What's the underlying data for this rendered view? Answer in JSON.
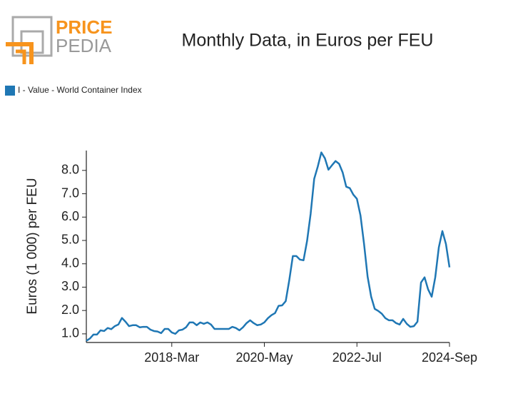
{
  "logo": {
    "brand_first": "PRICE",
    "brand_second": "PEDIA"
  },
  "chart_data": {
    "type": "line",
    "title": "Monthly Data, in Euros per FEU",
    "y_label": "Euros (1 000) per FEU",
    "x": [
      "2016-Mar",
      "2016-Apr",
      "2016-May",
      "2016-Jun",
      "2016-Jul",
      "2016-Aug",
      "2016-Sep",
      "2016-Oct",
      "2016-Nov",
      "2016-Dec",
      "2017-Jan",
      "2017-Feb",
      "2017-Mar",
      "2017-Apr",
      "2017-May",
      "2017-Jun",
      "2017-Jul",
      "2017-Aug",
      "2017-Sep",
      "2017-Oct",
      "2017-Nov",
      "2017-Dec",
      "2018-Jan",
      "2018-Feb",
      "2018-Mar",
      "2018-Apr",
      "2018-May",
      "2018-Jun",
      "2018-Jul",
      "2018-Aug",
      "2018-Sep",
      "2018-Oct",
      "2018-Nov",
      "2018-Dec",
      "2019-Jan",
      "2019-Feb",
      "2019-Mar",
      "2019-Apr",
      "2019-May",
      "2019-Jun",
      "2019-Jul",
      "2019-Aug",
      "2019-Sep",
      "2019-Oct",
      "2019-Nov",
      "2019-Dec",
      "2020-Jan",
      "2020-Feb",
      "2020-Mar",
      "2020-Apr",
      "2020-May",
      "2020-Jun",
      "2020-Jul",
      "2020-Aug",
      "2020-Sep",
      "2020-Oct",
      "2020-Nov",
      "2020-Dec",
      "2021-Jan",
      "2021-Feb",
      "2021-Mar",
      "2021-Apr",
      "2021-May",
      "2021-Jun",
      "2021-Jul",
      "2021-Aug",
      "2021-Sep",
      "2021-Oct",
      "2021-Nov",
      "2021-Dec",
      "2022-Jan",
      "2022-Feb",
      "2022-Mar",
      "2022-Apr",
      "2022-May",
      "2022-Jun",
      "2022-Jul",
      "2022-Aug",
      "2022-Sep",
      "2022-Oct",
      "2022-Nov",
      "2022-Dec",
      "2023-Jan",
      "2023-Feb",
      "2023-Mar",
      "2023-Apr",
      "2023-May",
      "2023-Jun",
      "2023-Jul",
      "2023-Aug",
      "2023-Sep",
      "2023-Oct",
      "2023-Nov",
      "2023-Dec",
      "2024-Jan",
      "2024-Feb",
      "2024-Mar",
      "2024-Apr",
      "2024-May",
      "2024-Jun",
      "2024-Jul",
      "2024-Aug",
      "2024-Sep"
    ],
    "series": [
      {
        "name": "I - Value - World Container Index",
        "color": "#1f77b4",
        "values": [
          0.7,
          0.8,
          0.97,
          0.97,
          1.15,
          1.12,
          1.25,
          1.2,
          1.33,
          1.4,
          1.68,
          1.52,
          1.33,
          1.37,
          1.37,
          1.28,
          1.3,
          1.3,
          1.18,
          1.12,
          1.1,
          1.03,
          1.21,
          1.21,
          1.06,
          1.0,
          1.15,
          1.18,
          1.28,
          1.49,
          1.49,
          1.37,
          1.49,
          1.43,
          1.49,
          1.4,
          1.21,
          1.21,
          1.21,
          1.21,
          1.21,
          1.3,
          1.25,
          1.15,
          1.28,
          1.46,
          1.58,
          1.46,
          1.37,
          1.4,
          1.49,
          1.67,
          1.8,
          1.89,
          2.2,
          2.22,
          2.4,
          3.3,
          4.33,
          4.33,
          4.18,
          4.15,
          4.98,
          6.14,
          7.64,
          8.16,
          8.77,
          8.52,
          8.03,
          8.22,
          8.4,
          8.28,
          7.91,
          7.3,
          7.24,
          6.96,
          6.78,
          6.07,
          4.85,
          3.45,
          2.59,
          2.07,
          1.98,
          1.86,
          1.67,
          1.58,
          1.58,
          1.46,
          1.4,
          1.64,
          1.43,
          1.3,
          1.33,
          1.52,
          3.2,
          3.42,
          2.9,
          2.59,
          3.42,
          4.7,
          5.4,
          4.85,
          3.85
        ]
      }
    ],
    "xticks": [
      "2018-Mar",
      "2020-May",
      "2022-Jul",
      "2024-Sep"
    ],
    "ylim": [
      0.63,
      8.85
    ],
    "yticks": [
      {
        "value": 1,
        "label": "1.0"
      },
      {
        "value": 2,
        "label": "2.0"
      },
      {
        "value": 3,
        "label": "3.0"
      },
      {
        "value": 4,
        "label": "4.0"
      },
      {
        "value": 5,
        "label": "5.0"
      },
      {
        "value": 6,
        "label": "6.0"
      },
      {
        "value": 7,
        "label": "7.0"
      },
      {
        "value": 8,
        "label": "8.0"
      }
    ],
    "grid": false,
    "legend": "top-left"
  }
}
